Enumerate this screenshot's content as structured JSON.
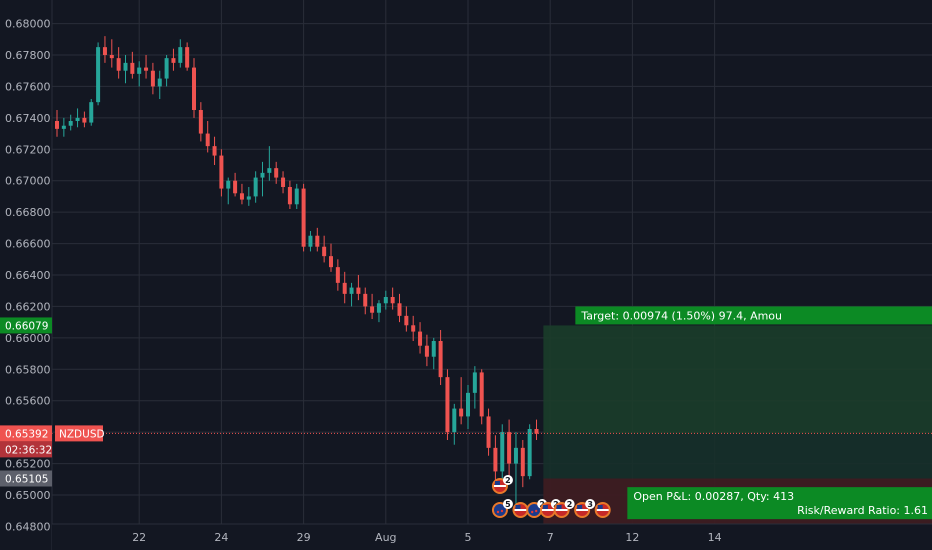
{
  "chart_data": {
    "type": "candlestick",
    "symbol": "NZDUSD",
    "colors": {
      "background": "#131722",
      "grid": "#2a2e39",
      "up": "#26a69a",
      "down": "#ef5350",
      "target_zone": "#1b3d2a",
      "stop_zone": "#3d1c22",
      "target_label": "#0c8a24",
      "pnl_label": "#0c8a24",
      "price_label": "#ef5350"
    },
    "y_axis": {
      "min": 0.6465,
      "max": 0.6815,
      "ticks": [
        "0.68000",
        "0.67800",
        "0.67600",
        "0.67400",
        "0.67200",
        "0.67000",
        "0.66800",
        "0.66600",
        "0.66400",
        "0.66200",
        "0.66000",
        "0.65800",
        "0.65600",
        "0.65400",
        "0.65200",
        "0.65000",
        "0.64800"
      ]
    },
    "x_axis": {
      "ticks": [
        {
          "label": "22",
          "index": 12
        },
        {
          "label": "24",
          "index": 24
        },
        {
          "label": "29",
          "index": 36
        },
        {
          "label": "Aug",
          "index": 48
        },
        {
          "label": "5",
          "index": 60
        },
        {
          "label": "7",
          "index": 72
        },
        {
          "label": "12",
          "index": 84
        },
        {
          "label": "14",
          "index": 96
        }
      ]
    },
    "candles": [
      [
        0.6738,
        0.6745,
        0.6728,
        0.6733
      ],
      [
        0.6733,
        0.674,
        0.6728,
        0.6735
      ],
      [
        0.6735,
        0.6742,
        0.6732,
        0.6738
      ],
      [
        0.6738,
        0.6746,
        0.6734,
        0.674
      ],
      [
        0.674,
        0.6744,
        0.6734,
        0.6737
      ],
      [
        0.6737,
        0.6752,
        0.6735,
        0.675
      ],
      [
        0.675,
        0.6788,
        0.6748,
        0.6785
      ],
      [
        0.6785,
        0.6792,
        0.6775,
        0.678
      ],
      [
        0.678,
        0.679,
        0.6772,
        0.6778
      ],
      [
        0.6778,
        0.6785,
        0.6765,
        0.677
      ],
      [
        0.677,
        0.678,
        0.6762,
        0.6775
      ],
      [
        0.6775,
        0.6782,
        0.6765,
        0.6768
      ],
      [
        0.6768,
        0.6776,
        0.676,
        0.6772
      ],
      [
        0.6772,
        0.678,
        0.6765,
        0.677
      ],
      [
        0.677,
        0.6775,
        0.6755,
        0.676
      ],
      [
        0.676,
        0.677,
        0.6752,
        0.6765
      ],
      [
        0.6765,
        0.678,
        0.676,
        0.6778
      ],
      [
        0.6778,
        0.6784,
        0.677,
        0.6775
      ],
      [
        0.6775,
        0.679,
        0.6772,
        0.6785
      ],
      [
        0.6785,
        0.6788,
        0.677,
        0.6772
      ],
      [
        0.6772,
        0.6778,
        0.674,
        0.6745
      ],
      [
        0.6745,
        0.675,
        0.6725,
        0.673
      ],
      [
        0.673,
        0.6738,
        0.6718,
        0.6722
      ],
      [
        0.6722,
        0.6728,
        0.671,
        0.6716
      ],
      [
        0.6716,
        0.672,
        0.669,
        0.6695
      ],
      [
        0.6695,
        0.6702,
        0.6685,
        0.67
      ],
      [
        0.67,
        0.6705,
        0.669,
        0.6692
      ],
      [
        0.6692,
        0.6698,
        0.6685,
        0.6688
      ],
      [
        0.6688,
        0.6696,
        0.6684,
        0.669
      ],
      [
        0.669,
        0.6706,
        0.6686,
        0.6702
      ],
      [
        0.6702,
        0.6712,
        0.669,
        0.6705
      ],
      [
        0.6705,
        0.6722,
        0.67,
        0.6708
      ],
      [
        0.6708,
        0.6712,
        0.6698,
        0.6702
      ],
      [
        0.6702,
        0.6706,
        0.6692,
        0.6696
      ],
      [
        0.6696,
        0.67,
        0.6682,
        0.6685
      ],
      [
        0.6685,
        0.6698,
        0.6682,
        0.6695
      ],
      [
        0.6695,
        0.6698,
        0.6655,
        0.6658
      ],
      [
        0.6658,
        0.6668,
        0.6655,
        0.6665
      ],
      [
        0.6665,
        0.667,
        0.6655,
        0.6658
      ],
      [
        0.6658,
        0.6665,
        0.6648,
        0.6652
      ],
      [
        0.6652,
        0.666,
        0.6642,
        0.6645
      ],
      [
        0.6645,
        0.665,
        0.663,
        0.6635
      ],
      [
        0.6635,
        0.6642,
        0.6622,
        0.6628
      ],
      [
        0.6628,
        0.6635,
        0.662,
        0.6632
      ],
      [
        0.6632,
        0.664,
        0.6624,
        0.6628
      ],
      [
        0.6628,
        0.6632,
        0.6615,
        0.662
      ],
      [
        0.662,
        0.6628,
        0.6612,
        0.6616
      ],
      [
        0.6616,
        0.6624,
        0.661,
        0.6622
      ],
      [
        0.6622,
        0.663,
        0.6618,
        0.6626
      ],
      [
        0.6626,
        0.6632,
        0.6618,
        0.6622
      ],
      [
        0.6622,
        0.6628,
        0.661,
        0.6614
      ],
      [
        0.6614,
        0.662,
        0.6604,
        0.6608
      ],
      [
        0.6608,
        0.6614,
        0.6598,
        0.6604
      ],
      [
        0.6604,
        0.661,
        0.659,
        0.6595
      ],
      [
        0.6595,
        0.6602,
        0.6582,
        0.6588
      ],
      [
        0.6588,
        0.66,
        0.658,
        0.6598
      ],
      [
        0.6598,
        0.6605,
        0.657,
        0.6575
      ],
      [
        0.6575,
        0.658,
        0.6535,
        0.654
      ],
      [
        0.654,
        0.6558,
        0.6532,
        0.6555
      ],
      [
        0.6555,
        0.6575,
        0.6545,
        0.655
      ],
      [
        0.655,
        0.657,
        0.6542,
        0.6565
      ],
      [
        0.6565,
        0.6582,
        0.6555,
        0.6578
      ],
      [
        0.6578,
        0.658,
        0.6545,
        0.655
      ],
      [
        0.655,
        0.6555,
        0.6525,
        0.653
      ],
      [
        0.653,
        0.6538,
        0.6508,
        0.6515
      ],
      [
        0.6515,
        0.6545,
        0.651,
        0.654
      ],
      [
        0.654,
        0.6548,
        0.651,
        0.652
      ],
      [
        0.652,
        0.654,
        0.6488,
        0.653
      ],
      [
        0.653,
        0.6535,
        0.6505,
        0.6512
      ],
      [
        0.6512,
        0.6545,
        0.651,
        0.6542
      ],
      [
        0.6542,
        0.6548,
        0.6535,
        0.6539
      ]
    ],
    "current_price": {
      "value": 0.65392,
      "label": "0.65392",
      "symbol": "NZDUSD",
      "countdown": "02:36:32"
    },
    "target_price": {
      "value": 0.66079,
      "label": "0.66079"
    },
    "stop_price": {
      "value": 0.65105,
      "label": "0.65105"
    },
    "position": {
      "start_index": 71,
      "target_text": "Target: 0.00974 (1.50%) 97.4, Amou",
      "pnl_line1": "Open P&L: 0.00287, Qty: 413",
      "pnl_line2": "Risk/Reward Ratio: 1.61"
    },
    "events": [
      {
        "index": 67,
        "row": 2,
        "flag": "us",
        "count": "2"
      },
      {
        "index": 67,
        "row": 1,
        "flag": "nz",
        "count": "5"
      },
      {
        "index": 70,
        "row": 1,
        "flag": "us",
        "count": ""
      },
      {
        "index": 72,
        "row": 1,
        "flag": "nz",
        "count": "2"
      },
      {
        "index": 74,
        "row": 1,
        "flag": "us",
        "count": "2"
      },
      {
        "index": 76,
        "row": 1,
        "flag": "us",
        "count": "2"
      },
      {
        "index": 79,
        "row": 1,
        "flag": "us",
        "count": "3"
      },
      {
        "index": 82,
        "row": 1,
        "flag": "us",
        "count": ""
      }
    ]
  }
}
